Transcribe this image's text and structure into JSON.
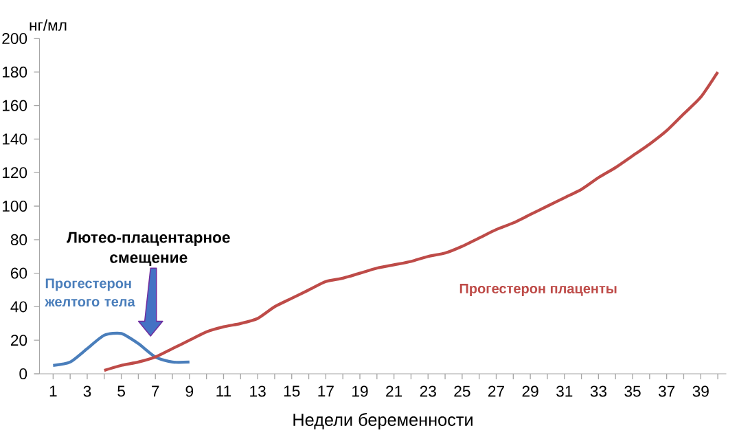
{
  "chart_data": {
    "type": "line",
    "xlabel": "Недели беременности",
    "ylabel": "нг/мл",
    "categories": [
      "1",
      null,
      "3",
      null,
      "5",
      null,
      "7",
      null,
      "9",
      null,
      "11",
      null,
      "13",
      null,
      "15",
      null,
      "17",
      null,
      "19",
      null,
      "21",
      null,
      "23",
      null,
      "25",
      null,
      "27",
      null,
      "29",
      null,
      "31",
      null,
      "33",
      null,
      "35",
      null,
      "37",
      null,
      "39",
      null
    ],
    "series": [
      {
        "name": "Прогестерон желтого тела",
        "color": "#4a7ebb",
        "values": [
          5,
          7,
          15,
          23,
          24,
          18,
          10,
          7,
          7,
          null,
          null,
          null,
          null,
          null,
          null,
          null,
          null,
          null,
          null,
          null,
          null,
          null,
          null,
          null,
          null,
          null,
          null,
          null,
          null,
          null,
          null,
          null,
          null,
          null,
          null,
          null,
          null,
          null,
          null,
          null
        ]
      },
      {
        "name": "Прогестерон плаценты",
        "color": "#be4b48",
        "values": [
          null,
          null,
          null,
          2,
          5,
          7,
          10,
          15,
          20,
          25,
          28,
          30,
          33,
          40,
          45,
          50,
          55,
          57,
          60,
          63,
          65,
          67,
          70,
          72,
          76,
          81,
          86,
          90,
          95,
          100,
          105,
          110,
          117,
          123,
          130,
          137,
          145,
          155,
          165,
          180
        ]
      }
    ],
    "ylim": [
      0,
      200
    ],
    "yticks": [
      0,
      20,
      40,
      60,
      80,
      100,
      120,
      140,
      160,
      180,
      200
    ],
    "annotations": [
      "Лютео-плацентарное смещение"
    ]
  }
}
